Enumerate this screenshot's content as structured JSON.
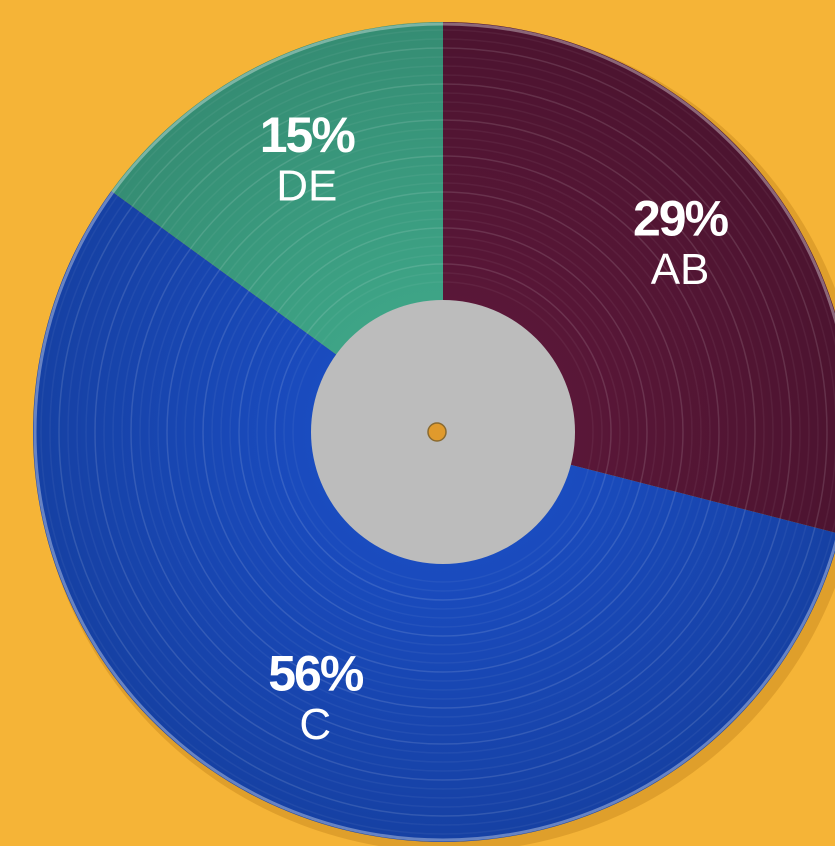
{
  "chart_data": {
    "type": "pie",
    "categories": [
      "AB",
      "C",
      "DE"
    ],
    "values": [
      29,
      56,
      15
    ],
    "value_labels": [
      "29%",
      "56%",
      "15%"
    ],
    "colors": [
      "#5a1738",
      "#1a4cc0",
      "#3ea587"
    ]
  }
}
